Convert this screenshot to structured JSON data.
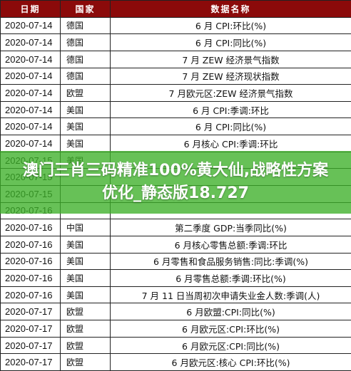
{
  "table": {
    "headers": [
      "日期",
      "国家",
      "数据名称"
    ],
    "rows": [
      {
        "date": "2020-07-14",
        "country": "德国",
        "item": "6 月 CPI:环比(%)"
      },
      {
        "date": "2020-07-14",
        "country": "德国",
        "item": "6 月 CPI:同比(%)"
      },
      {
        "date": "2020-07-14",
        "country": "德国",
        "item": "7 月 ZEW 经济景气指数"
      },
      {
        "date": "2020-07-14",
        "country": "德国",
        "item": "7 月 ZEW 经济现状指数"
      },
      {
        "date": "2020-07-14",
        "country": "欧盟",
        "item": "7 月欧元区:ZEW 经济景气指数"
      },
      {
        "date": "2020-07-14",
        "country": "美国",
        "item": "6 月 CPI:季调:环比"
      },
      {
        "date": "2020-07-14",
        "country": "美国",
        "item": "6 月 CPI:同比(%)"
      },
      {
        "date": "2020-07-14",
        "country": "美国",
        "item": "6 月核心 CPI:季调:环比"
      },
      {
        "date": "2020-07-15",
        "country": "美国",
        "item": ""
      },
      {
        "date": "2020-07-15",
        "country": "",
        "item": ""
      },
      {
        "date": "2020-07-15",
        "country": "",
        "item": ""
      },
      {
        "date": "2020-07-16",
        "country": "",
        "item": ""
      },
      {
        "date": "2020-07-16",
        "country": "中国",
        "item": "第二季度 GDP:当季同比(%)"
      },
      {
        "date": "2020-07-16",
        "country": "美国",
        "item": "6 月核心零售总额:季调:环比"
      },
      {
        "date": "2020-07-16",
        "country": "美国",
        "item": "6 月零售和食品服务销售:同比:季调(%)"
      },
      {
        "date": "2020-07-16",
        "country": "美国",
        "item": "6 月零售总额:季调:环比(%)"
      },
      {
        "date": "2020-07-16",
        "country": "美国",
        "item": "7 月 11 日当周初次申请失业金人数:季调(人)"
      },
      {
        "date": "2020-07-17",
        "country": "欧盟",
        "item": "6 月欧盟:CPI:同比(%)"
      },
      {
        "date": "2020-07-17",
        "country": "欧盟",
        "item": "6 月欧元区:CPI:环比(%)"
      },
      {
        "date": "2020-07-17",
        "country": "欧盟",
        "item": "6 月欧元区:CPI:同比(%)"
      },
      {
        "date": "2020-07-17",
        "country": "欧盟",
        "item": "6 月欧元区:核心 CPI:环比(%)"
      }
    ]
  },
  "overlay": {
    "text": "澳门三肖三码精准100%黄大仙,战略性方案优化_静态版18.727"
  },
  "colors": {
    "header_bg": "#8b0a0a",
    "overlay_bg": "#3caf28"
  }
}
